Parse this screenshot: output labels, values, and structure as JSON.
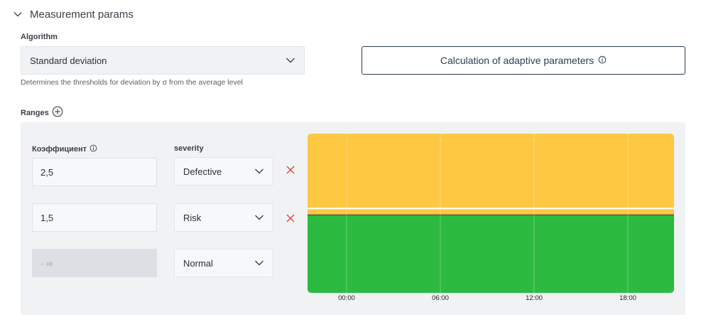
{
  "section": {
    "title": "Measurement params",
    "expanded": true
  },
  "algorithm": {
    "label": "Algorithm",
    "selected": "Standard deviation",
    "description": "Determines the thresholds for deviation by σ from the average level"
  },
  "calc_button": {
    "label": "Calculation of adaptive parameters"
  },
  "ranges": {
    "label": "Ranges",
    "coef_header": "Коэффициент",
    "severity_header": "severity",
    "rows": [
      {
        "coefficient": "2,5",
        "severity": "Defective",
        "removable": true
      },
      {
        "coefficient": "1,5",
        "severity": "Risk",
        "removable": true
      },
      {
        "coefficient_placeholder": "- ∞",
        "severity": "Normal",
        "removable": false
      }
    ]
  },
  "chart_data": {
    "type": "area",
    "x_ticks": [
      "00:00",
      "06:00",
      "12:00",
      "18:00"
    ],
    "bands": [
      {
        "severity": "Defective",
        "color": "#FEC843",
        "from_fraction": 0.0,
        "to_fraction": 0.47
      },
      {
        "severity": "Risk",
        "color": "#FEC843",
        "from_fraction": 0.47,
        "to_fraction": 0.51
      },
      {
        "severity": "Normal",
        "color": "#2DBA40",
        "from_fraction": 0.51,
        "to_fraction": 1.0
      }
    ],
    "colors": {
      "warning": "#FEC843",
      "normal": "#2DBA40"
    }
  }
}
